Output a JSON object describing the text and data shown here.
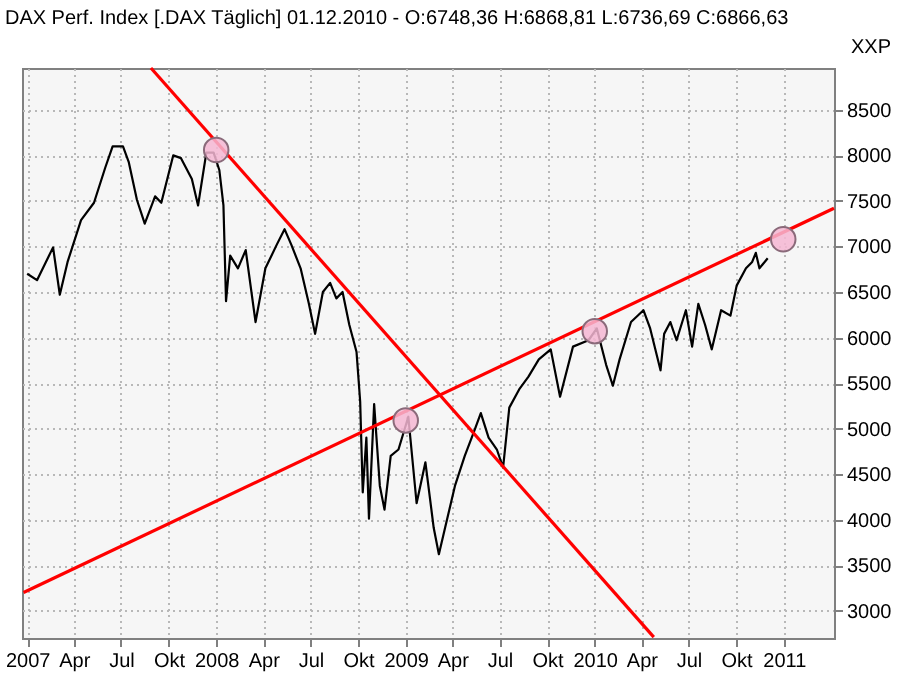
{
  "chart_data": {
    "type": "line",
    "title": "DAX Perf. Index [.DAX  Täglich] 01.12.2010 - O:6748,36 H:6868,81 L:6736,69 C:6866,63",
    "ylabel": "XXP",
    "xlim": [
      "2006-12-22",
      "2011-04-08"
    ],
    "ylim": [
      2700,
      8960
    ],
    "xticks": [
      {
        "value": "2007-01-01",
        "label": "2007"
      },
      {
        "value": "2007-04-01",
        "label": "Apr"
      },
      {
        "value": "2007-07-01",
        "label": "Jul"
      },
      {
        "value": "2007-10-01",
        "label": "Okt"
      },
      {
        "value": "2008-01-01",
        "label": "2008"
      },
      {
        "value": "2008-04-01",
        "label": "Apr"
      },
      {
        "value": "2008-07-01",
        "label": "Jul"
      },
      {
        "value": "2008-10-01",
        "label": "Okt"
      },
      {
        "value": "2009-01-01",
        "label": "2009"
      },
      {
        "value": "2009-04-01",
        "label": "Apr"
      },
      {
        "value": "2009-07-01",
        "label": "Jul"
      },
      {
        "value": "2009-10-01",
        "label": "Okt"
      },
      {
        "value": "2010-01-01",
        "label": "2010"
      },
      {
        "value": "2010-04-01",
        "label": "Apr"
      },
      {
        "value": "2010-07-01",
        "label": "Jul"
      },
      {
        "value": "2010-10-01",
        "label": "Okt"
      },
      {
        "value": "2011-01-01",
        "label": "2011"
      }
    ],
    "yticks": [
      3000,
      3500,
      4000,
      4500,
      5000,
      5500,
      6000,
      6500,
      7000,
      7500,
      8000,
      8500
    ],
    "grid": true,
    "series": [
      {
        "color": "#000000",
        "marker": "none",
        "x": [
          "2007-01-01",
          "2007-01-20",
          "2007-02-20",
          "2007-03-05",
          "2007-03-20",
          "2007-04-15",
          "2007-05-10",
          "2007-06-01",
          "2007-06-15",
          "2007-07-05",
          "2007-07-16",
          "2007-08-01",
          "2007-08-16",
          "2007-09-05",
          "2007-09-17",
          "2007-10-10",
          "2007-10-25",
          "2007-11-15",
          "2007-11-27",
          "2007-12-13",
          "2007-12-27",
          "2008-01-07",
          "2008-01-15",
          "2008-01-20",
          "2008-01-28",
          "2008-02-12",
          "2008-02-27",
          "2008-03-17",
          "2008-04-05",
          "2008-04-27",
          "2008-05-12",
          "2008-05-25",
          "2008-06-12",
          "2008-06-28",
          "2008-07-10",
          "2008-07-25",
          "2008-08-08",
          "2008-08-20",
          "2008-09-01",
          "2008-09-14",
          "2008-09-28",
          "2008-10-05",
          "2008-10-10",
          "2008-10-17",
          "2008-10-22",
          "2008-11-01",
          "2008-11-12",
          "2008-11-21",
          "2008-12-03",
          "2008-12-18",
          "2009-01-06",
          "2009-01-22",
          "2009-02-08",
          "2009-02-24",
          "2009-03-06",
          "2009-03-18",
          "2009-04-06",
          "2009-04-25",
          "2009-05-13",
          "2009-05-26",
          "2009-06-10",
          "2009-06-26",
          "2009-07-08",
          "2009-07-20",
          "2009-08-08",
          "2009-08-26",
          "2009-09-15",
          "2009-10-08",
          "2009-10-26",
          "2009-11-20",
          "2009-12-20",
          "2010-01-05",
          "2010-01-23",
          "2010-02-05",
          "2010-02-18",
          "2010-03-12",
          "2010-04-05",
          "2010-04-18",
          "2010-05-08",
          "2010-05-15",
          "2010-05-27",
          "2010-06-08",
          "2010-06-26",
          "2010-07-08",
          "2010-07-20",
          "2010-08-02",
          "2010-08-15",
          "2010-09-02",
          "2010-09-20",
          "2010-10-02",
          "2010-10-20",
          "2010-11-01",
          "2010-11-08",
          "2010-11-15",
          "2010-12-01"
        ],
        "values": [
          6700,
          6630,
          6990,
          6470,
          6830,
          7290,
          7480,
          7870,
          8100,
          8100,
          7930,
          7510,
          7250,
          7550,
          7480,
          8000,
          7970,
          7740,
          7450,
          8030,
          8030,
          7840,
          7450,
          6400,
          6900,
          6760,
          6960,
          6170,
          6760,
          7020,
          7190,
          7020,
          6760,
          6370,
          6040,
          6500,
          6600,
          6430,
          6500,
          6140,
          5840,
          5300,
          4300,
          4900,
          4010,
          5270,
          4370,
          4110,
          4700,
          4770,
          5130,
          4180,
          4630,
          3910,
          3620,
          3910,
          4370,
          4700,
          4970,
          5170,
          4900,
          4770,
          4570,
          5230,
          5430,
          5570,
          5760,
          5870,
          5350,
          5900,
          5970,
          6100,
          5700,
          5470,
          5760,
          6170,
          6300,
          6100,
          5640,
          6040,
          6170,
          5970,
          6300,
          5900,
          6370,
          6140,
          5870,
          6300,
          6240,
          6570,
          6760,
          6830,
          6930,
          6760,
          6870
        ]
      },
      {
        "color": "#ff0000",
        "marker": "none",
        "x": [
          "2007-08-28",
          "2010-04-25"
        ],
        "values": [
          8960,
          2710
        ]
      },
      {
        "color": "#ff0000",
        "marker": "none",
        "x": [
          "2006-12-25",
          "2011-04-08"
        ],
        "values": [
          3200,
          7420
        ]
      },
      {
        "type": "scatter",
        "color": "#f4b6d2",
        "marker": "circle",
        "x": [
          "2008-01-01",
          "2009-01-01",
          "2010-01-01",
          "2010-12-31"
        ],
        "values": [
          8060,
          5090,
          6070,
          7080
        ]
      }
    ]
  }
}
